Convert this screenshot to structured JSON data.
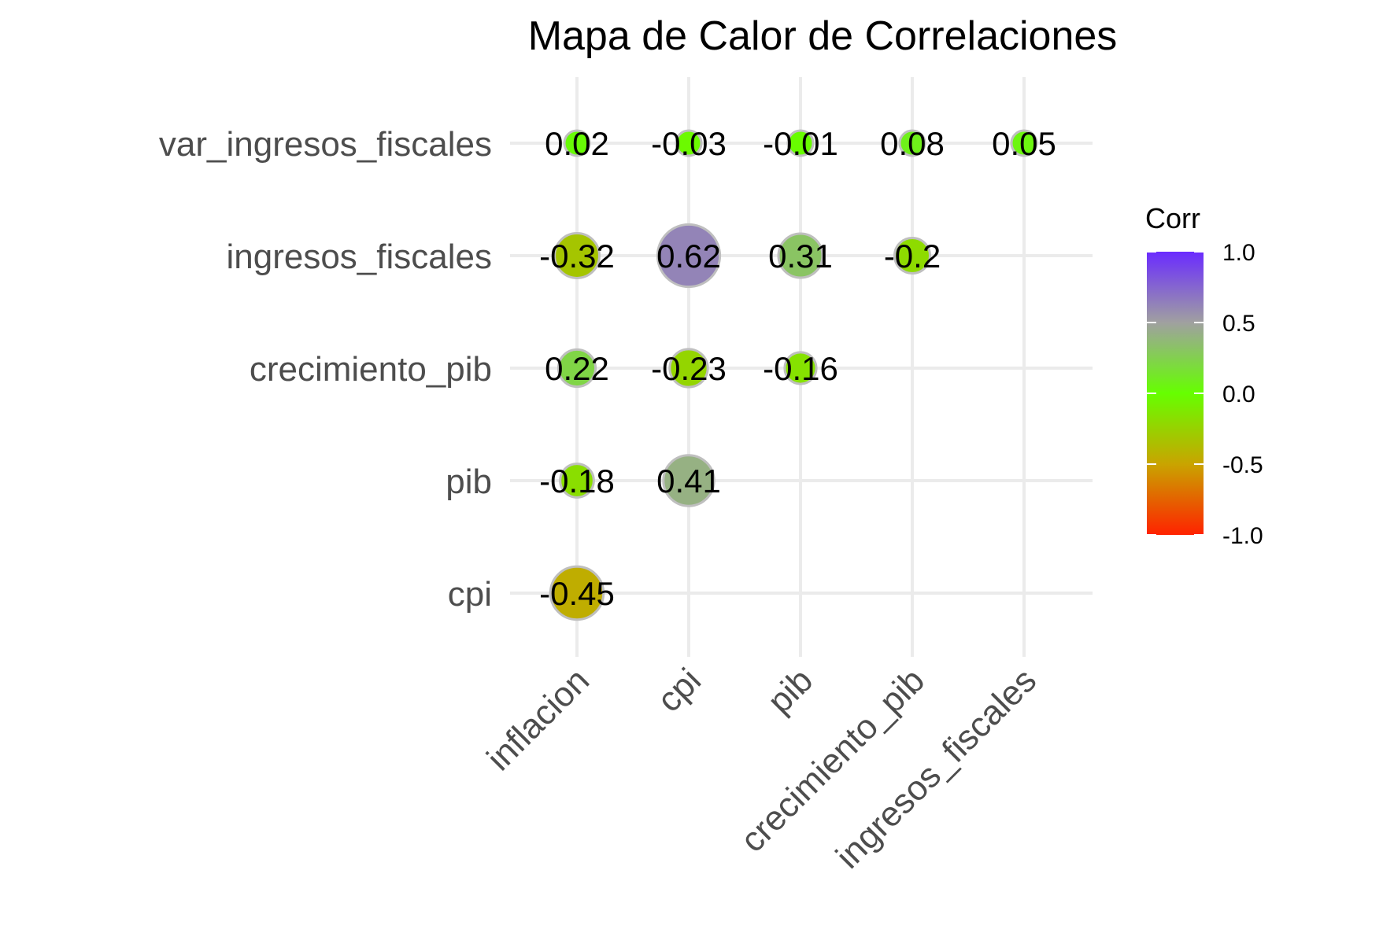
{
  "chart_data": {
    "type": "heatmap",
    "title": "Mapa de Calor de Correlaciones",
    "x_categories": [
      "inflacion",
      "cpi",
      "pib",
      "crecimiento_pib",
      "ingresos_fiscales"
    ],
    "y_categories": [
      "cpi",
      "pib",
      "crecimiento_pib",
      "ingresos_fiscales",
      "var_ingresos_fiscales"
    ],
    "cells": [
      {
        "x": "inflacion",
        "y": "var_ingresos_fiscales",
        "value": 0.02,
        "label": "0.02"
      },
      {
        "x": "cpi",
        "y": "var_ingresos_fiscales",
        "value": -0.03,
        "label": "-0.03"
      },
      {
        "x": "pib",
        "y": "var_ingresos_fiscales",
        "value": -0.01,
        "label": "-0.01"
      },
      {
        "x": "crecimiento_pib",
        "y": "var_ingresos_fiscales",
        "value": 0.08,
        "label": "0.08"
      },
      {
        "x": "ingresos_fiscales",
        "y": "var_ingresos_fiscales",
        "value": 0.05,
        "label": "0.05"
      },
      {
        "x": "inflacion",
        "y": "ingresos_fiscales",
        "value": -0.32,
        "label": "-0.32"
      },
      {
        "x": "cpi",
        "y": "ingresos_fiscales",
        "value": 0.62,
        "label": "0.62"
      },
      {
        "x": "pib",
        "y": "ingresos_fiscales",
        "value": 0.31,
        "label": "0.31"
      },
      {
        "x": "crecimiento_pib",
        "y": "ingresos_fiscales",
        "value": -0.2,
        "label": "-0.2"
      },
      {
        "x": "inflacion",
        "y": "crecimiento_pib",
        "value": 0.22,
        "label": "0.22"
      },
      {
        "x": "cpi",
        "y": "crecimiento_pib",
        "value": -0.23,
        "label": "-0.23"
      },
      {
        "x": "pib",
        "y": "crecimiento_pib",
        "value": -0.16,
        "label": "-0.16"
      },
      {
        "x": "inflacion",
        "y": "pib",
        "value": -0.18,
        "label": "-0.18"
      },
      {
        "x": "cpi",
        "y": "pib",
        "value": 0.41,
        "label": "0.41"
      },
      {
        "x": "inflacion",
        "y": "cpi",
        "value": -0.45,
        "label": "-0.45"
      }
    ],
    "legend": {
      "title": "Corr",
      "position": "right",
      "range": [
        -1.0,
        1.0
      ],
      "ticks": [
        {
          "value": 1.0,
          "label": "1.0"
        },
        {
          "value": 0.5,
          "label": "0.5"
        },
        {
          "value": 0.0,
          "label": "0.0"
        },
        {
          "value": -0.5,
          "label": "-0.5"
        },
        {
          "value": -1.0,
          "label": "-1.0"
        }
      ],
      "colors": {
        "low": "#ff2a00",
        "mid": "#6cff00",
        "high": "#6f2bff",
        "mid_high": "#9f9f9f",
        "mid_low": "#c7c700"
      }
    },
    "grid": true,
    "circle_outline_color": "#bfbfbf"
  }
}
